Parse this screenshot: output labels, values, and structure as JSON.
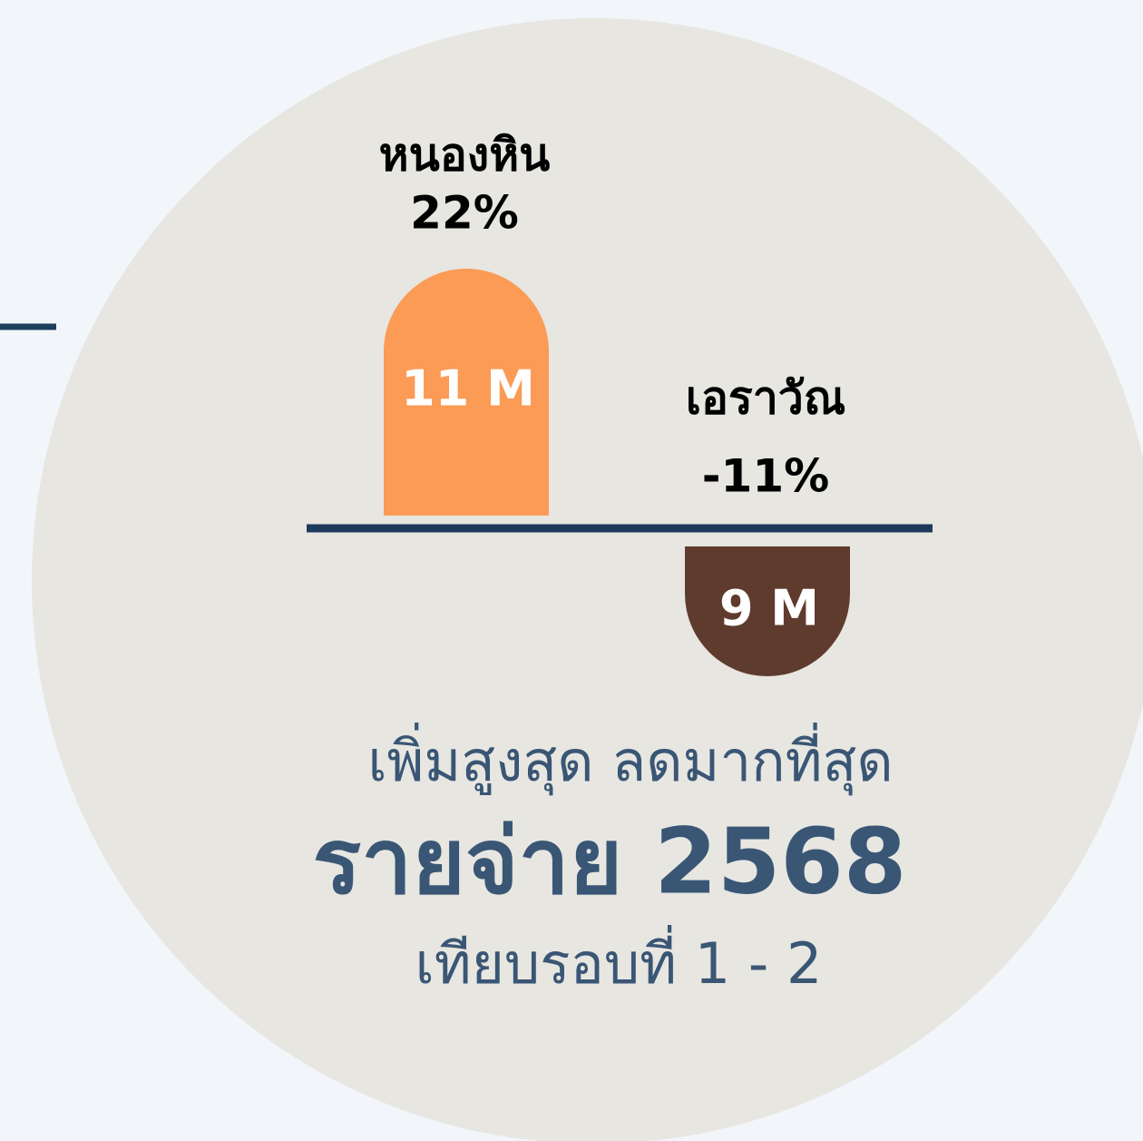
{
  "chart_data": {
    "type": "bar",
    "title": "รายจ่าย 2568",
    "subtitle": "เพิ่มสูงสุด ลดมากที่สุด",
    "note": "เทียบรอบที่ 1 - 2",
    "categories": [
      "หนองหิน",
      "เอราวัณ"
    ],
    "values": [
      22,
      -11
    ],
    "value_labels": [
      "22%",
      "-11%"
    ],
    "amount_labels": [
      "11 M",
      "9 M"
    ],
    "colors": [
      "#fb9b55",
      "#5f3b2e"
    ],
    "ylim": [
      -30,
      30
    ]
  }
}
